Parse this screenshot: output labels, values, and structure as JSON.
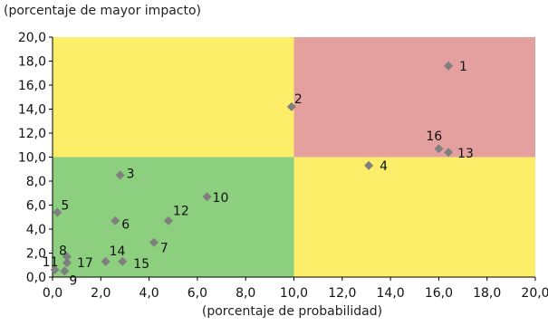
{
  "chart_data": {
    "type": "scatter",
    "title": "",
    "ylabel": "(porcentaje de mayor impacto)",
    "xlabel": "(porcentaje de probabilidad)",
    "xlim": [
      0,
      20
    ],
    "ylim": [
      0,
      20
    ],
    "x_ticks": [
      "0,0",
      "2,0",
      "4,0",
      "6,0",
      "8,0",
      "10,0",
      "12,0",
      "14,0",
      "16,0",
      "18,0",
      "20,0"
    ],
    "y_ticks": [
      "0,0",
      "2,0",
      "4,0",
      "6,0",
      "8,0",
      "10,0",
      "12,0",
      "14,0",
      "16,0",
      "18,0",
      "20,0"
    ],
    "grid": false,
    "marker": "diamond",
    "marker_color": "#7f7f7f",
    "quadrants": [
      {
        "x": [
          0,
          10
        ],
        "y": [
          0,
          10
        ],
        "color": "#8ccf7e"
      },
      {
        "x": [
          10,
          20
        ],
        "y": [
          0,
          10
        ],
        "color": "#fdee6a"
      },
      {
        "x": [
          0,
          10
        ],
        "y": [
          10,
          20
        ],
        "color": "#fdee6a"
      },
      {
        "x": [
          10,
          20
        ],
        "y": [
          10,
          20
        ],
        "color": "#e3a09e"
      }
    ],
    "points": [
      {
        "label": "1",
        "x": 16.4,
        "y": 17.6
      },
      {
        "label": "2",
        "x": 9.9,
        "y": 14.2
      },
      {
        "label": "3",
        "x": 2.8,
        "y": 8.5
      },
      {
        "label": "4",
        "x": 13.1,
        "y": 9.3
      },
      {
        "label": "5",
        "x": 0.2,
        "y": 5.4
      },
      {
        "label": "6",
        "x": 2.6,
        "y": 4.7
      },
      {
        "label": "7",
        "x": 4.2,
        "y": 2.9
      },
      {
        "label": "8",
        "x": 0.6,
        "y": 1.7
      },
      {
        "label": "9",
        "x": 0.5,
        "y": 0.5
      },
      {
        "label": "10",
        "x": 6.4,
        "y": 6.7
      },
      {
        "label": "11",
        "x": 0.1,
        "y": 0.6
      },
      {
        "label": "12",
        "x": 4.8,
        "y": 4.7
      },
      {
        "label": "13",
        "x": 16.4,
        "y": 10.4
      },
      {
        "label": "14",
        "x": 2.2,
        "y": 1.3
      },
      {
        "label": "15",
        "x": 2.9,
        "y": 1.3
      },
      {
        "label": "16",
        "x": 16.0,
        "y": 10.7
      },
      {
        "label": "17",
        "x": 0.6,
        "y": 1.2
      }
    ]
  }
}
